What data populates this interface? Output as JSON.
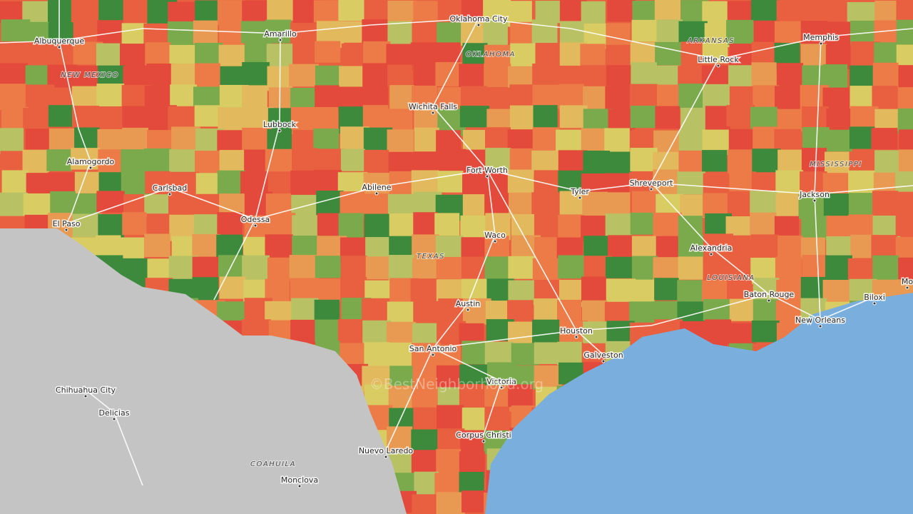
{
  "cities": [
    "Albuquerque",
    "Amarillo",
    "Oklahoma City",
    "Memphis",
    "Little Rock",
    "Wichita Falls",
    "Lubbock",
    "Alamogordo",
    "Carlsbad",
    "Fort Worth",
    "Abilene",
    "Tyler",
    "Shreveport",
    "Jackson",
    "El Paso",
    "Odessa",
    "Waco",
    "Alexandria",
    "Baton Rouge",
    "Biloxi",
    "Mo",
    "Austin",
    "Houston",
    "New Orleans",
    "Galveston",
    "San Antonio",
    "Victoria",
    "Chihuahua City",
    "Delicias",
    "Corpus Christi",
    "Nuevo Laredo",
    "Monclova"
  ],
  "regions": [
    "NEW MEXICO",
    "OKLAHOMA",
    "ARKANSAS",
    "MISSISSIPPI",
    "TEXAS",
    "LOUISIANA",
    "COAHUILA"
  ],
  "watermark": "©BestNeighborhood.org"
}
